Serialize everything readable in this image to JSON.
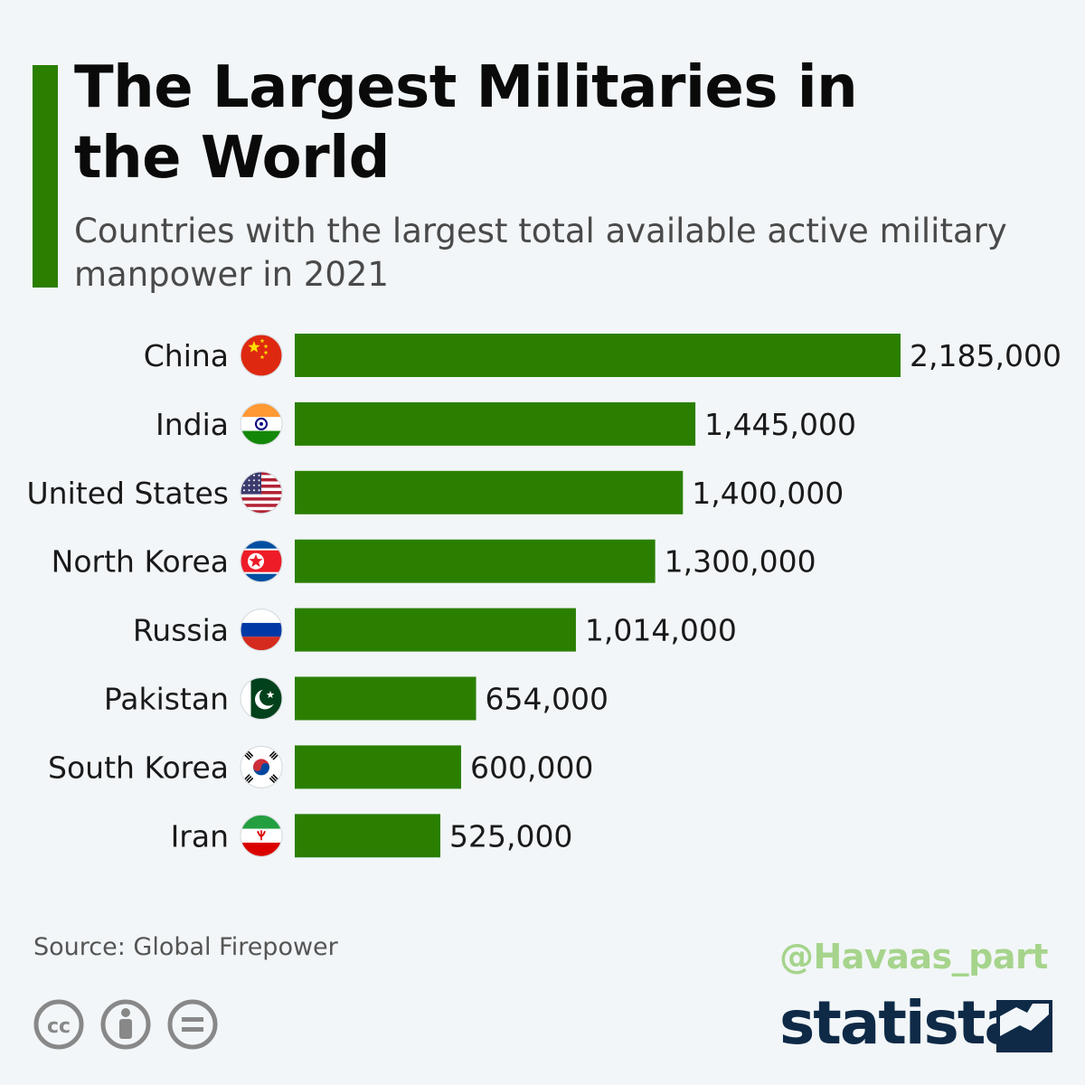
{
  "title": "The Largest Militaries in the World",
  "subtitle": "Countries with the largest total available active military manpower in 2021",
  "source": "Source: Global Firepower",
  "watermark": "@Havaas_part",
  "brand": "statista",
  "colors": {
    "bar": "#2a7f00",
    "accent": "#2a7f00",
    "brand": "#0e2a47"
  },
  "license_icons": [
    "creative-commons-icon",
    "attribution-icon",
    "no-derivatives-icon"
  ],
  "chart_data": {
    "type": "bar",
    "orientation": "horizontal",
    "categories": [
      "China",
      "India",
      "United States",
      "North Korea",
      "Russia",
      "Pakistan",
      "South Korea",
      "Iran"
    ],
    "values": [
      2185000,
      1445000,
      1400000,
      1300000,
      1014000,
      654000,
      600000,
      525000
    ],
    "value_labels": [
      "2,185,000",
      "1,445,000",
      "1,400,000",
      "1,300,000",
      "1,014,000",
      "654,000",
      "600,000",
      "525,000"
    ],
    "flag_icons": [
      "china-flag-icon",
      "india-flag-icon",
      "usa-flag-icon",
      "north-korea-flag-icon",
      "russia-flag-icon",
      "pakistan-flag-icon",
      "south-korea-flag-icon",
      "iran-flag-icon"
    ],
    "grid": false
  }
}
